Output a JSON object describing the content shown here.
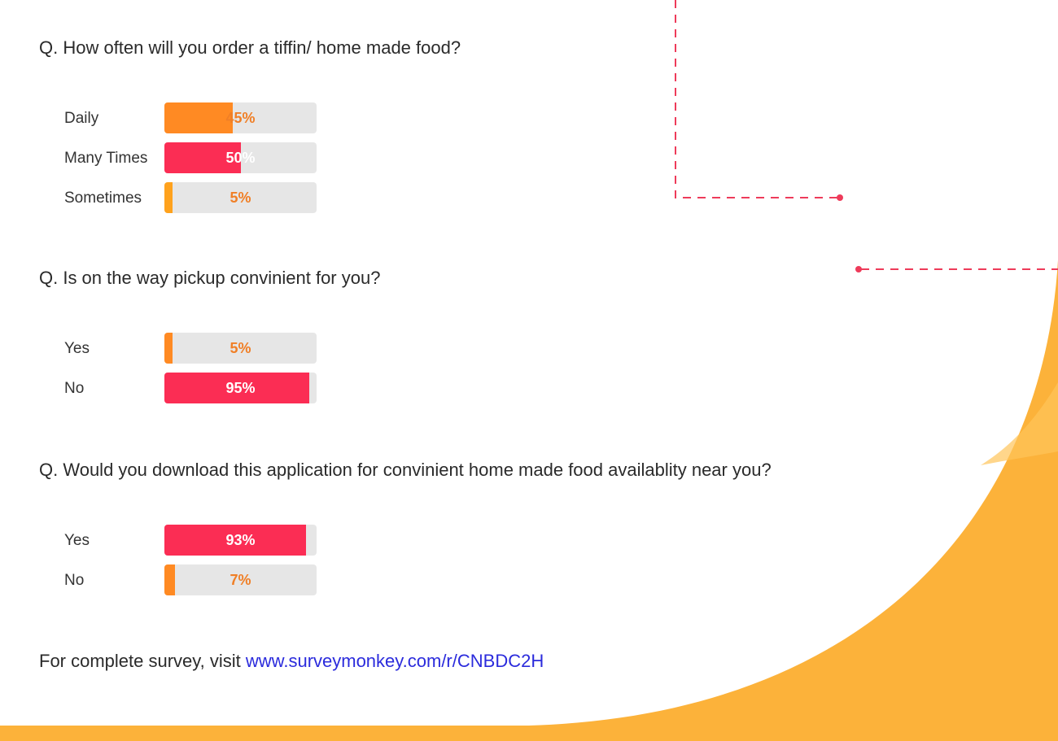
{
  "colors": {
    "pink": "#fb2d54",
    "orange": "#ff8a23",
    "amber": "#ffa21d",
    "track": "#e6e6e6",
    "pct_on_light": "#f07f26",
    "pct_on_fill": "#ffffff",
    "curve": "#fcb23a",
    "link": "#2b2bdc",
    "dash": "#ee3b5a"
  },
  "questions": [
    {
      "text": "Q. How often will you order a tiffin/ home made food?",
      "options": [
        {
          "label": "Daily",
          "percent": 45,
          "display": "45%",
          "color": "orange"
        },
        {
          "label": "Many Times",
          "percent": 50,
          "display": "50%",
          "color": "pink"
        },
        {
          "label": "Sometimes",
          "percent": 5,
          "display": "5%",
          "color": "amber"
        }
      ]
    },
    {
      "text": "Q. Is on the way pickup convinient for you?",
      "options": [
        {
          "label": "Yes",
          "percent": 5,
          "display": "5%",
          "color": "orange"
        },
        {
          "label": "No",
          "percent": 95,
          "display": "95%",
          "color": "pink"
        }
      ]
    },
    {
      "text": "Q. Would you download this application for convinient home made food availablity near you?",
      "options": [
        {
          "label": "Yes",
          "percent": 93,
          "display": "93%",
          "color": "pink"
        },
        {
          "label": "No",
          "percent": 7,
          "display": "7%",
          "color": "orange"
        }
      ]
    }
  ],
  "footer": {
    "prefix": "For complete survey, visit ",
    "link_text": "www.surveymonkey.com/r/CNBDC2H"
  },
  "chart_data": [
    {
      "type": "bar",
      "title": "Q. How often will you order a tiffin/ home made food?",
      "categories": [
        "Daily",
        "Many Times",
        "Sometimes"
      ],
      "values": [
        45,
        50,
        5
      ],
      "ylim": [
        0,
        100
      ]
    },
    {
      "type": "bar",
      "title": "Q. Is on the way pickup convinient for you?",
      "categories": [
        "Yes",
        "No"
      ],
      "values": [
        5,
        95
      ],
      "ylim": [
        0,
        100
      ]
    },
    {
      "type": "bar",
      "title": "Q. Would you download this application for convinient home made food availablity near you?",
      "categories": [
        "Yes",
        "No"
      ],
      "values": [
        93,
        7
      ],
      "ylim": [
        0,
        100
      ]
    }
  ]
}
